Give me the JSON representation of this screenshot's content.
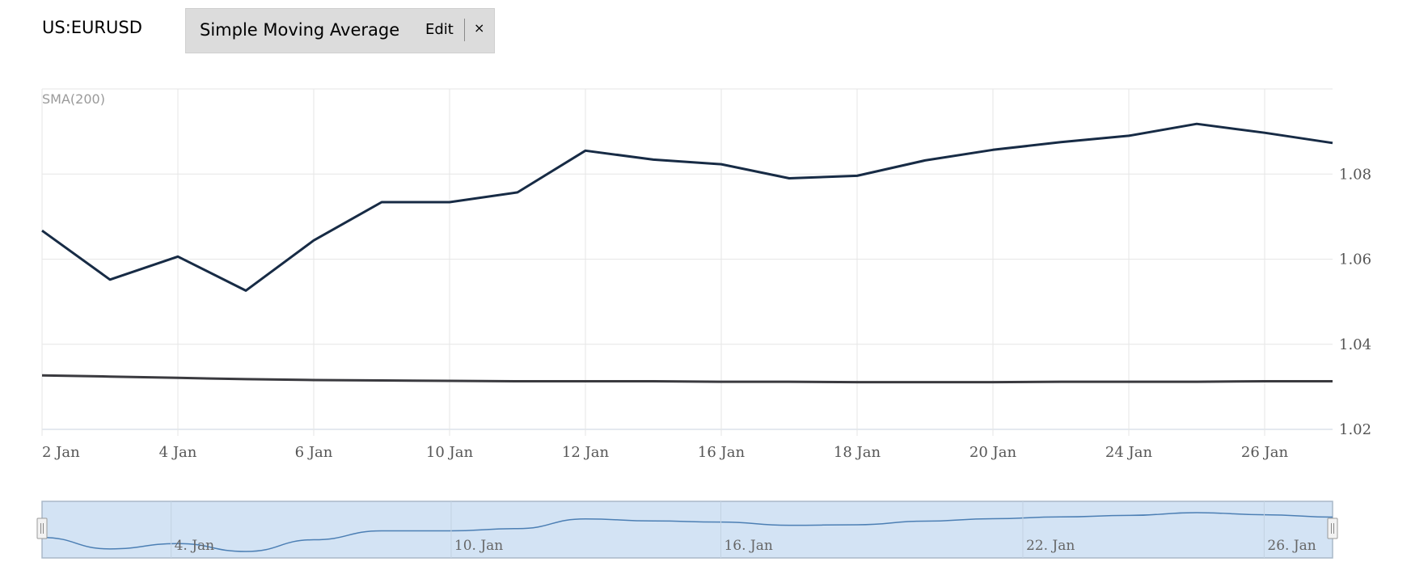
{
  "header": {
    "symbol": "US:EURUSD",
    "indicator_name": "Simple Moving Average",
    "edit_label": "Edit",
    "close_label": "×"
  },
  "chart_data": {
    "type": "line",
    "panel_label": "SMA(200)",
    "x": [
      "2 Jan",
      "3 Jan",
      "4 Jan",
      "5 Jan",
      "6 Jan",
      "9 Jan",
      "10 Jan",
      "11 Jan",
      "12 Jan",
      "13 Jan",
      "16 Jan",
      "17 Jan",
      "18 Jan",
      "19 Jan",
      "20 Jan",
      "23 Jan",
      "24 Jan",
      "25 Jan",
      "26 Jan",
      "27 Jan"
    ],
    "x_tick_labels": [
      "2 Jan",
      "4 Jan",
      "6 Jan",
      "10 Jan",
      "12 Jan",
      "16 Jan",
      "18 Jan",
      "20 Jan",
      "24 Jan",
      "26 Jan"
    ],
    "y_tick_labels": [
      "1.08",
      "1.06",
      "1.04",
      "1.02"
    ],
    "ylim": [
      1.02,
      1.1
    ],
    "grid": true,
    "y_axis_side": "right",
    "series": [
      {
        "color": "#172b45",
        "values": [
          1.0667,
          1.0552,
          1.0606,
          1.0526,
          1.0644,
          1.0734,
          1.0734,
          1.0757,
          1.0855,
          1.0834,
          1.0823,
          1.079,
          1.0796,
          1.0832,
          1.0857,
          1.0875,
          1.089,
          1.0918,
          1.0897,
          1.0873
        ]
      },
      {
        "color": "#3a3a3f",
        "values": [
          1.0327,
          1.0324,
          1.0321,
          1.0318,
          1.0316,
          1.0315,
          1.0314,
          1.0313,
          1.0313,
          1.0313,
          1.0312,
          1.0312,
          1.0311,
          1.0311,
          1.0311,
          1.0312,
          1.0312,
          1.0312,
          1.0313,
          1.0313
        ]
      }
    ],
    "navigator": {
      "tick_labels": [
        "4. Jan",
        "10. Jan",
        "16. Jan",
        "22. Jan",
        "26. Jan"
      ],
      "fill_color": "#d3e3f4",
      "line_color": "#4c7fb4"
    }
  }
}
